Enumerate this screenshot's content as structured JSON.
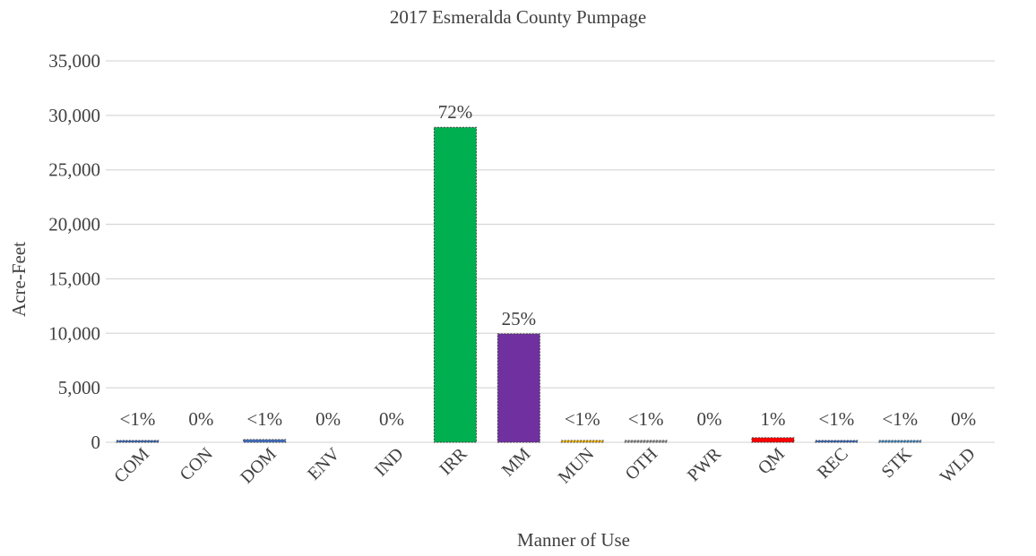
{
  "chart_data": {
    "type": "bar",
    "title": "2017 Esmeralda County Pumpage",
    "xlabel": "Manner of  Use",
    "ylabel": "Acre-Feet",
    "ylim": [
      0,
      35000
    ],
    "yticks": [
      0,
      5000,
      10000,
      15000,
      20000,
      25000,
      30000,
      35000
    ],
    "ytick_labels": [
      "0",
      "5,000",
      "10,000",
      "15,000",
      "20,000",
      "25,000",
      "30,000",
      "35,000"
    ],
    "grid": true,
    "categories": [
      "COM",
      "CON",
      "DOM",
      "ENV",
      "IND",
      "IRR",
      "MM",
      "MUN",
      "OTH",
      "PWR",
      "QM",
      "REC",
      "STK",
      "WLD"
    ],
    "values": [
      60,
      0,
      250,
      0,
      0,
      28900,
      9950,
      150,
      40,
      0,
      420,
      130,
      100,
      0
    ],
    "data_labels": [
      "<1%",
      "0%",
      "<1%",
      "0%",
      "0%",
      "72%",
      "25%",
      "<1%",
      "<1%",
      "0%",
      "1%",
      "<1%",
      "<1%",
      "0%"
    ],
    "colors": [
      "#4472c4",
      "#4472c4",
      "#4472c4",
      "#4472c4",
      "#4472c4",
      "#00b050",
      "#7030a0",
      "#ffc000",
      "#a5a5a5",
      "#4472c4",
      "#ff0000",
      "#4472c4",
      "#5b9bd5",
      "#4472c4"
    ]
  }
}
